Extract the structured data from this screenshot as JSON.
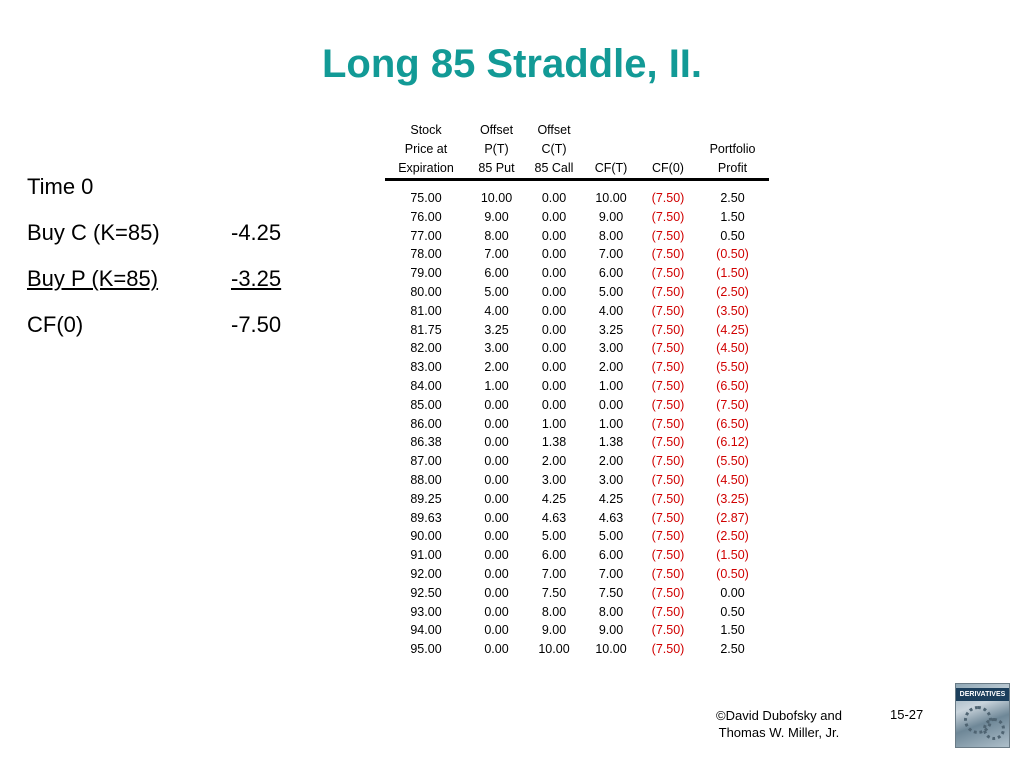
{
  "title": "Long 85 Straddle, II.",
  "left_panel": {
    "rows": [
      {
        "label": "Time 0",
        "value": ""
      },
      {
        "label": "Buy C (K=85)",
        "value": "-4.25"
      },
      {
        "label": "Buy P (K=85)",
        "value": "-3.25"
      },
      {
        "label": "CF(0)",
        "value": "-7.50"
      }
    ]
  },
  "table": {
    "headers": [
      [
        "Stock",
        "Offset",
        "Offset",
        "",
        "",
        ""
      ],
      [
        "Price at",
        "P(T)",
        "C(T)",
        "",
        "",
        "Portfolio"
      ],
      [
        "Expiration",
        "85 Put",
        "85 Call",
        "CF(T)",
        "CF(0)",
        "Profit"
      ]
    ],
    "rows": [
      [
        "75.00",
        "10.00",
        "0.00",
        "10.00",
        "(7.50)",
        "2.50"
      ],
      [
        "76.00",
        "9.00",
        "0.00",
        "9.00",
        "(7.50)",
        "1.50"
      ],
      [
        "77.00",
        "8.00",
        "0.00",
        "8.00",
        "(7.50)",
        "0.50"
      ],
      [
        "78.00",
        "7.00",
        "0.00",
        "7.00",
        "(7.50)",
        "(0.50)"
      ],
      [
        "79.00",
        "6.00",
        "0.00",
        "6.00",
        "(7.50)",
        "(1.50)"
      ],
      [
        "80.00",
        "5.00",
        "0.00",
        "5.00",
        "(7.50)",
        "(2.50)"
      ],
      [
        "81.00",
        "4.00",
        "0.00",
        "4.00",
        "(7.50)",
        "(3.50)"
      ],
      [
        "81.75",
        "3.25",
        "0.00",
        "3.25",
        "(7.50)",
        "(4.25)"
      ],
      [
        "82.00",
        "3.00",
        "0.00",
        "3.00",
        "(7.50)",
        "(4.50)"
      ],
      [
        "83.00",
        "2.00",
        "0.00",
        "2.00",
        "(7.50)",
        "(5.50)"
      ],
      [
        "84.00",
        "1.00",
        "0.00",
        "1.00",
        "(7.50)",
        "(6.50)"
      ],
      [
        "85.00",
        "0.00",
        "0.00",
        "0.00",
        "(7.50)",
        "(7.50)"
      ],
      [
        "86.00",
        "0.00",
        "1.00",
        "1.00",
        "(7.50)",
        "(6.50)"
      ],
      [
        "86.38",
        "0.00",
        "1.38",
        "1.38",
        "(7.50)",
        "(6.12)"
      ],
      [
        "87.00",
        "0.00",
        "2.00",
        "2.00",
        "(7.50)",
        "(5.50)"
      ],
      [
        "88.00",
        "0.00",
        "3.00",
        "3.00",
        "(7.50)",
        "(4.50)"
      ],
      [
        "89.25",
        "0.00",
        "4.25",
        "4.25",
        "(7.50)",
        "(3.25)"
      ],
      [
        "89.63",
        "0.00",
        "4.63",
        "4.63",
        "(7.50)",
        "(2.87)"
      ],
      [
        "90.00",
        "0.00",
        "5.00",
        "5.00",
        "(7.50)",
        "(2.50)"
      ],
      [
        "91.00",
        "0.00",
        "6.00",
        "6.00",
        "(7.50)",
        "(1.50)"
      ],
      [
        "92.00",
        "0.00",
        "7.00",
        "7.00",
        "(7.50)",
        "(0.50)"
      ],
      [
        "92.50",
        "0.00",
        "7.50",
        "7.50",
        "(7.50)",
        "0.00"
      ],
      [
        "93.00",
        "0.00",
        "8.00",
        "8.00",
        "(7.50)",
        "0.50"
      ],
      [
        "94.00",
        "0.00",
        "9.00",
        "9.00",
        "(7.50)",
        "1.50"
      ],
      [
        "95.00",
        "0.00",
        "10.00",
        "10.00",
        "(7.50)",
        "2.50"
      ]
    ]
  },
  "footer": {
    "line1": "©David Dubofsky and",
    "line2": "Thomas W. Miller, Jr.",
    "page": "15-27"
  },
  "book_cover": {
    "label": "DERIVATIVES"
  },
  "colors": {
    "title": "#129a96",
    "negative": "#d00000"
  }
}
